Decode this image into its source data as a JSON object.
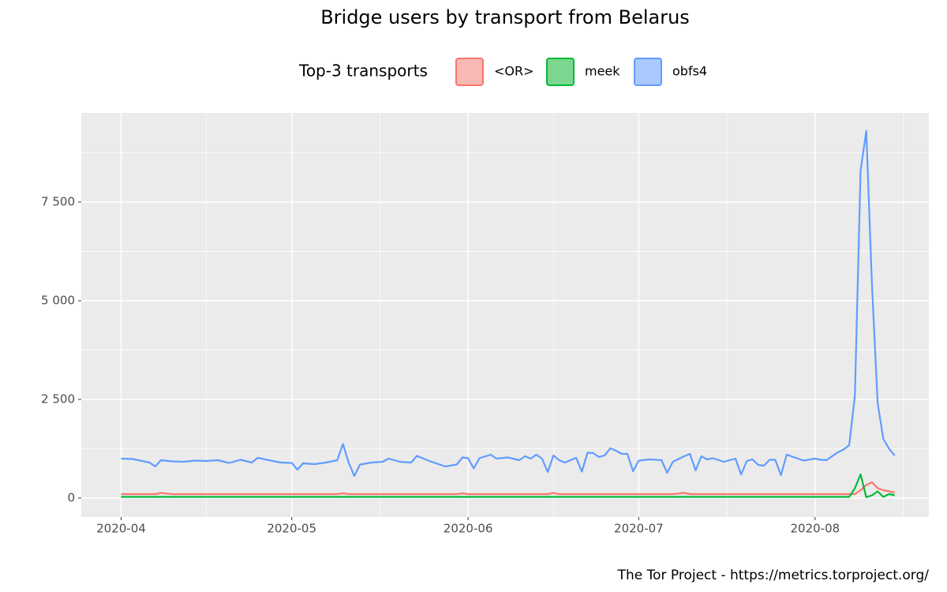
{
  "chart_data": {
    "type": "line",
    "title": "Bridge users by transport from Belarus",
    "legend_title": "Top-3 transports",
    "caption": "The Tor Project - https://metrics.torproject.org/",
    "x": [
      "2020-04-01",
      "2020-04-03",
      "2020-04-05",
      "2020-04-06",
      "2020-04-07",
      "2020-04-08",
      "2020-04-10",
      "2020-04-12",
      "2020-04-14",
      "2020-04-16",
      "2020-04-18",
      "2020-04-20",
      "2020-04-22",
      "2020-04-24",
      "2020-04-25",
      "2020-04-27",
      "2020-04-29",
      "2020-05-01",
      "2020-05-02",
      "2020-05-03",
      "2020-05-05",
      "2020-05-07",
      "2020-05-09",
      "2020-05-10",
      "2020-05-11",
      "2020-05-12",
      "2020-05-13",
      "2020-05-15",
      "2020-05-17",
      "2020-05-18",
      "2020-05-20",
      "2020-05-22",
      "2020-05-23",
      "2020-05-25",
      "2020-05-27",
      "2020-05-28",
      "2020-05-30",
      "2020-05-31",
      "2020-06-01",
      "2020-06-02",
      "2020-06-03",
      "2020-06-05",
      "2020-06-06",
      "2020-06-08",
      "2020-06-10",
      "2020-06-11",
      "2020-06-12",
      "2020-06-13",
      "2020-06-14",
      "2020-06-15",
      "2020-06-16",
      "2020-06-17",
      "2020-06-18",
      "2020-06-20",
      "2020-06-21",
      "2020-06-22",
      "2020-06-23",
      "2020-06-24",
      "2020-06-25",
      "2020-06-26",
      "2020-06-27",
      "2020-06-28",
      "2020-06-29",
      "2020-06-30",
      "2020-07-01",
      "2020-07-03",
      "2020-07-05",
      "2020-07-06",
      "2020-07-07",
      "2020-07-09",
      "2020-07-10",
      "2020-07-11",
      "2020-07-12",
      "2020-07-13",
      "2020-07-14",
      "2020-07-16",
      "2020-07-18",
      "2020-07-19",
      "2020-07-20",
      "2020-07-21",
      "2020-07-22",
      "2020-07-23",
      "2020-07-24",
      "2020-07-25",
      "2020-07-26",
      "2020-07-27",
      "2020-07-28",
      "2020-07-30",
      "2020-08-01",
      "2020-08-02",
      "2020-08-03",
      "2020-08-04",
      "2020-08-05",
      "2020-08-06",
      "2020-08-07",
      "2020-08-08",
      "2020-08-09",
      "2020-08-10",
      "2020-08-11",
      "2020-08-12",
      "2020-08-13",
      "2020-08-14",
      "2020-08-15"
    ],
    "series": [
      {
        "name": "<OR>",
        "color": "#F8766D",
        "legend_fill": "#F8B8B3",
        "values": [
          100,
          100,
          100,
          100,
          100,
          130,
          100,
          100,
          100,
          100,
          100,
          100,
          100,
          100,
          100,
          100,
          100,
          100,
          100,
          100,
          100,
          100,
          100,
          120,
          100,
          100,
          100,
          100,
          100,
          100,
          100,
          100,
          100,
          100,
          100,
          100,
          100,
          120,
          100,
          100,
          100,
          100,
          100,
          100,
          100,
          100,
          100,
          100,
          100,
          100,
          130,
          100,
          100,
          100,
          100,
          100,
          100,
          100,
          100,
          100,
          100,
          100,
          100,
          100,
          100,
          100,
          100,
          100,
          100,
          130,
          100,
          100,
          100,
          100,
          100,
          100,
          100,
          100,
          100,
          100,
          100,
          100,
          100,
          100,
          100,
          100,
          100,
          100,
          100,
          100,
          100,
          100,
          100,
          100,
          100,
          100,
          200,
          330,
          400,
          250,
          200,
          170,
          140
        ]
      },
      {
        "name": "meek",
        "color": "#00BA38",
        "legend_fill": "#7CD68F",
        "values": [
          30,
          30,
          30,
          30,
          30,
          30,
          30,
          30,
          30,
          30,
          30,
          30,
          30,
          30,
          30,
          30,
          30,
          30,
          30,
          30,
          30,
          30,
          30,
          30,
          30,
          30,
          30,
          30,
          30,
          30,
          30,
          30,
          30,
          30,
          30,
          30,
          30,
          30,
          30,
          30,
          30,
          30,
          30,
          30,
          30,
          30,
          30,
          30,
          30,
          30,
          30,
          30,
          30,
          30,
          30,
          30,
          30,
          30,
          30,
          30,
          30,
          30,
          30,
          30,
          30,
          30,
          30,
          30,
          30,
          30,
          30,
          30,
          30,
          30,
          30,
          30,
          30,
          30,
          30,
          30,
          30,
          30,
          30,
          30,
          30,
          30,
          30,
          30,
          30,
          30,
          30,
          30,
          30,
          30,
          30,
          250,
          600,
          20,
          70,
          170,
          30,
          100,
          70
        ]
      },
      {
        "name": "obfs4",
        "color": "#619CFF",
        "legend_fill": "#ABC8FF",
        "values": [
          1000,
          990,
          930,
          900,
          800,
          960,
          930,
          920,
          950,
          940,
          960,
          890,
          970,
          900,
          1020,
          960,
          900,
          890,
          720,
          880,
          860,
          900,
          960,
          1370,
          900,
          560,
          850,
          900,
          920,
          1000,
          920,
          900,
          1070,
          950,
          850,
          800,
          850,
          1030,
          1010,
          750,
          1010,
          1100,
          1000,
          1030,
          960,
          1060,
          1000,
          1100,
          1000,
          660,
          1080,
          960,
          900,
          1020,
          670,
          1150,
          1140,
          1040,
          1080,
          1260,
          1200,
          1120,
          1120,
          680,
          950,
          980,
          960,
          640,
          920,
          1060,
          1120,
          700,
          1060,
          980,
          1010,
          920,
          1000,
          600,
          940,
          980,
          840,
          820,
          970,
          970,
          580,
          1100,
          1050,
          950,
          1000,
          970,
          960,
          1060,
          1160,
          1230,
          1340,
          2600,
          8300,
          9300,
          5400,
          2400,
          1500,
          1250,
          1080
        ]
      }
    ],
    "xlim": [
      "2020-03-25",
      "2020-08-21"
    ],
    "xticks": [
      {
        "value": "2020-04-01",
        "label": "2020-04"
      },
      {
        "value": "2020-05-01",
        "label": "2020-05"
      },
      {
        "value": "2020-06-01",
        "label": "2020-06"
      },
      {
        "value": "2020-07-01",
        "label": "2020-07"
      },
      {
        "value": "2020-08-01",
        "label": "2020-08"
      }
    ],
    "ylim": [
      -480,
      9760
    ],
    "yticks": [
      0,
      {
        "value": 2500,
        "label": "2 500"
      },
      {
        "value": 5000,
        "label": "5 000"
      },
      {
        "value": 7500,
        "label": "7 500"
      }
    ],
    "grid": true
  }
}
